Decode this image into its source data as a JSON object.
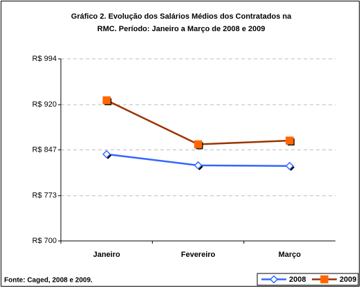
{
  "chart_data": {
    "type": "line",
    "title": [
      "Gráfico 2. Evolução dos Salários Médios dos Contratados na",
      "RMC.  Período: Janeiro a Março de 2008 e 2009"
    ],
    "categories": [
      "Janeiro",
      "Fevereiro",
      "Março"
    ],
    "series": [
      {
        "name": "2008",
        "color": "#3366ff",
        "marker_color": "#3366ff",
        "marker": "diamond",
        "values": [
          840,
          822,
          821
        ]
      },
      {
        "name": "2009",
        "color": "#993300",
        "marker_color": "#ff6600",
        "marker": "square",
        "values": [
          927,
          856,
          862
        ]
      }
    ],
    "ylim": [
      700,
      994
    ],
    "yticks": [
      {
        "value": 700,
        "label": "R$ 700"
      },
      {
        "value": 773,
        "label": "R$ 773"
      },
      {
        "value": 847,
        "label": "R$ 847"
      },
      {
        "value": 920,
        "label": "R$ 920"
      },
      {
        "value": 994,
        "label": "R$ 994"
      }
    ],
    "grid": true,
    "legend": "bottom-right",
    "source": "Fonte: Caged, 2008 e 2009."
  }
}
